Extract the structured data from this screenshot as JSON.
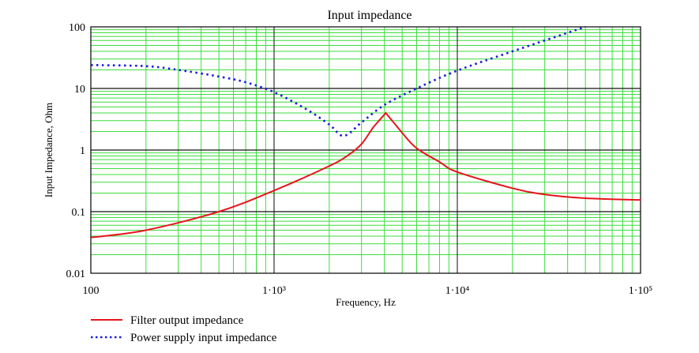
{
  "chart_data": {
    "type": "line",
    "title": "Input impedance",
    "xlabel": "Frequency, Hz",
    "ylabel": "Input Impedance, Ohm",
    "x_scale": "log",
    "y_scale": "log",
    "xlim": [
      100,
      100000
    ],
    "ylim": [
      0.01,
      100
    ],
    "grid": true,
    "legend_position": "bottom-left",
    "x_ticks": [
      {
        "value": 100,
        "label": "100"
      },
      {
        "value": 1000,
        "label": "1·10³"
      },
      {
        "value": 10000,
        "label": "1·10⁴"
      },
      {
        "value": 100000,
        "label": "1·10⁵"
      }
    ],
    "y_ticks": [
      {
        "value": 100,
        "label": "100"
      },
      {
        "value": 10,
        "label": "10"
      },
      {
        "value": 1,
        "label": "1"
      },
      {
        "value": 0.1,
        "label": "0.1"
      },
      {
        "value": 0.01,
        "label": "0.01"
      }
    ],
    "series": [
      {
        "name": "Filter output impedance",
        "color": "#e8141c",
        "style": "solid",
        "x": [
          100,
          200,
          500,
          1000,
          2000,
          2500,
          3000,
          3500,
          4070,
          5000,
          6000,
          8000,
          10000,
          20000,
          30000,
          50000,
          100000
        ],
        "y": [
          0.038,
          0.05,
          0.1,
          0.22,
          0.55,
          0.8,
          1.25,
          2.4,
          4.0,
          1.9,
          1.07,
          0.64,
          0.44,
          0.24,
          0.19,
          0.165,
          0.155
        ]
      },
      {
        "name": "Power supply input impedance",
        "color": "#1a1adc",
        "style": "dotted",
        "x": [
          100,
          200,
          300,
          500,
          700,
          1000,
          1500,
          2000,
          2400,
          3000,
          4000,
          6000,
          10000,
          20000,
          50000
        ],
        "y": [
          24,
          23,
          20,
          15.6,
          12.6,
          8.7,
          4.6,
          2.6,
          1.7,
          2.8,
          5.4,
          10,
          19.5,
          40,
          100
        ]
      }
    ]
  }
}
